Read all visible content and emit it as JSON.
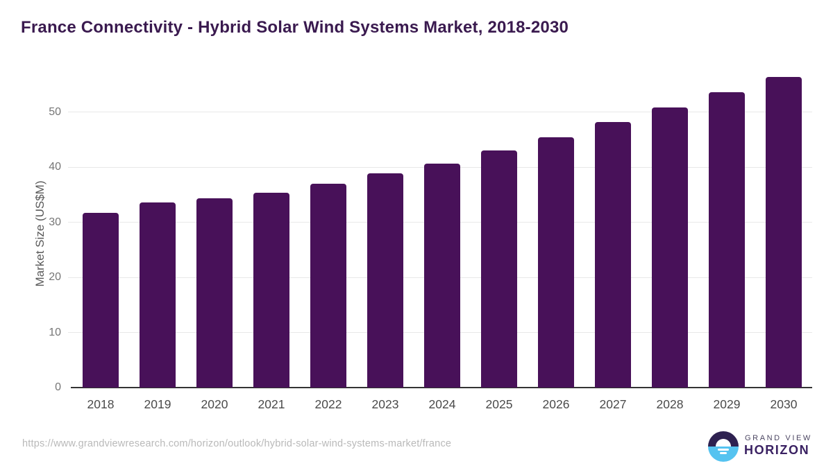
{
  "header": {
    "title": "France Connectivity - Hybrid Solar Wind Systems Market, 2018-2030"
  },
  "chart_data": {
    "type": "bar",
    "title": "France Connectivity - Hybrid Solar Wind Systems Market, 2018-2030",
    "categories": [
      "2018",
      "2019",
      "2020",
      "2021",
      "2022",
      "2023",
      "2024",
      "2025",
      "2026",
      "2027",
      "2028",
      "2029",
      "2030"
    ],
    "values": [
      31.7,
      33.6,
      34.3,
      35.4,
      37.0,
      38.9,
      40.7,
      43.1,
      45.5,
      48.2,
      50.9,
      53.6,
      56.4
    ],
    "xlabel": "",
    "ylabel": "Market Size (US$M)",
    "yticks": [
      0,
      10,
      20,
      30,
      40,
      50
    ],
    "ylim": [
      0,
      58.4
    ],
    "grid": true,
    "legend": "none",
    "bar_color": "#481159",
    "gridline_color": "#e8e8e8",
    "axis_line_color": "#333333",
    "ytick_label_color": "#757575",
    "xtick_label_color": "#4a4a4a",
    "title_color": "#3a1a4f"
  },
  "footer": {
    "source_url": "https://www.grandviewresearch.com/horizon/outlook/hybrid-solar-wind-systems-market/france",
    "logo": {
      "line1": "GRAND VIEW",
      "line2": "HORIZON",
      "circle_top_color": "#2e2150",
      "circle_bottom_color": "#55c3f0"
    }
  }
}
